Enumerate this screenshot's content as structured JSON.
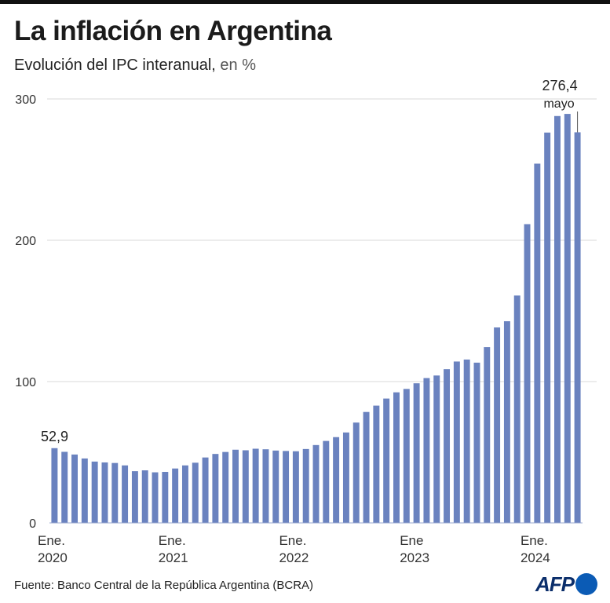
{
  "header": {
    "title": "La inflación en Argentina",
    "subtitle": "Evolución del IPC interanual,",
    "subtitle_unit": "en %"
  },
  "footer": {
    "source": "Fuente: Banco Central de la República Argentina (BCRA)",
    "logo_text": "AFP"
  },
  "colors": {
    "bar": "#6a82bf",
    "grid": "#d9d9d9",
    "text": "#222222"
  },
  "chart_data": {
    "type": "bar",
    "title": "La inflación en Argentina",
    "subtitle": "Evolución del IPC interanual, en %",
    "ylim": [
      0,
      300
    ],
    "y_ticks": [
      0,
      100,
      200,
      300
    ],
    "grid": true,
    "x_tick_labels": [
      {
        "line1": "Ene.",
        "line2": "2020",
        "index": 0
      },
      {
        "line1": "Ene.",
        "line2": "2021",
        "index": 12
      },
      {
        "line1": "Ene.",
        "line2": "2022",
        "index": 24
      },
      {
        "line1": "Ene",
        "line2": "2023",
        "index": 36
      },
      {
        "line1": "Ene.",
        "line2": "2024",
        "index": 48
      }
    ],
    "series": [
      {
        "values": [
          52.9,
          50.3,
          48.4,
          45.6,
          43.4,
          42.8,
          42.4,
          40.7,
          36.6,
          37.2,
          35.8,
          36.1,
          38.5,
          40.7,
          42.6,
          46.3,
          48.8,
          50.2,
          51.8,
          51.4,
          52.5,
          52.1,
          51.2,
          50.9,
          50.7,
          52.3,
          55.1,
          58.0,
          60.7,
          64.0,
          71.0,
          78.5,
          83.0,
          88.0,
          92.4,
          94.8,
          98.8,
          102.5,
          104.3,
          108.8,
          114.2,
          115.6,
          113.4,
          124.4,
          138.3,
          142.7,
          160.9,
          211.4,
          254.2,
          276.2,
          287.9,
          289.4,
          276.4
        ]
      }
    ],
    "annotations": [
      {
        "text": "52,9",
        "index": 0
      },
      {
        "text": "276,4",
        "sub": "mayo",
        "index": 52
      }
    ]
  }
}
